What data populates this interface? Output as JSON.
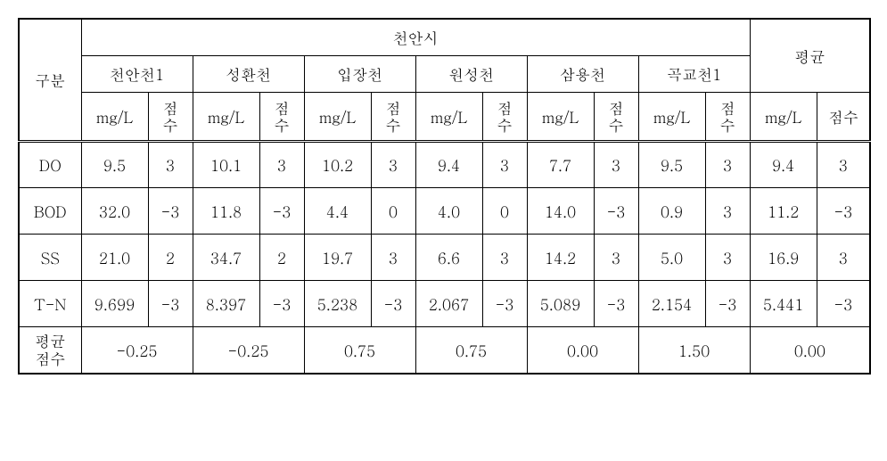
{
  "header": {
    "gubun": "구분",
    "city": "천안시",
    "avg": "평균",
    "mgL": "mg/L",
    "score": "점수",
    "score_v": "점\n수",
    "stations": [
      "천안천1",
      "성환천",
      "입장천",
      "원성천",
      "삼용천",
      "곡교천1"
    ]
  },
  "rows": [
    {
      "label": "DO",
      "vals": [
        [
          "9.5",
          "3"
        ],
        [
          "10.1",
          "3"
        ],
        [
          "10.2",
          "3"
        ],
        [
          "9.4",
          "3"
        ],
        [
          "7.7",
          "3"
        ],
        [
          "9.5",
          "3"
        ]
      ],
      "avg": [
        "9.4",
        "3"
      ]
    },
    {
      "label": "BOD",
      "vals": [
        [
          "32.0",
          "-3"
        ],
        [
          "11.8",
          "-3"
        ],
        [
          "4.4",
          "0"
        ],
        [
          "4.0",
          "0"
        ],
        [
          "14.0",
          "-3"
        ],
        [
          "0.9",
          "3"
        ]
      ],
      "avg": [
        "11.2",
        "-3"
      ]
    },
    {
      "label": "SS",
      "vals": [
        [
          "21.0",
          "2"
        ],
        [
          "34.7",
          "2"
        ],
        [
          "19.7",
          "3"
        ],
        [
          "6.6",
          "3"
        ],
        [
          "14.2",
          "3"
        ],
        [
          "5.0",
          "3"
        ]
      ],
      "avg": [
        "16.9",
        "3"
      ]
    },
    {
      "label": "T-N",
      "vals": [
        [
          "9.699",
          "-3"
        ],
        [
          "8.397",
          "-3"
        ],
        [
          "5.238",
          "-3"
        ],
        [
          "2.067",
          "-3"
        ],
        [
          "5.089",
          "-3"
        ],
        [
          "2.154",
          "-3"
        ]
      ],
      "avg": [
        "5.441",
        "-3"
      ]
    }
  ],
  "avgRow": {
    "label": "평균\n점수",
    "vals": [
      "-0.25",
      "-0.25",
      "0.75",
      "0.75",
      "0.00",
      "1.50"
    ],
    "avg": "0.00"
  },
  "colwidths": {
    "gubun": 70,
    "mgl": 75,
    "score": 50,
    "avg_mgl": 75,
    "avg_score": 60
  }
}
